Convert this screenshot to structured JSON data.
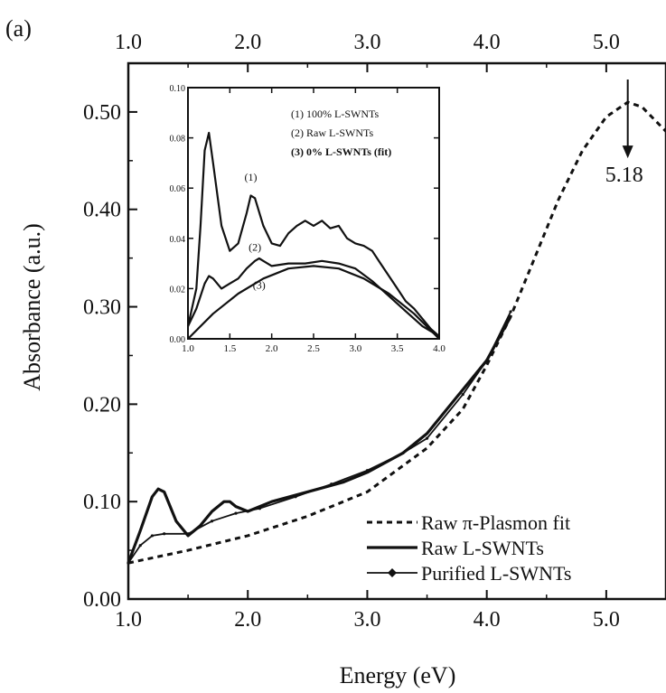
{
  "panel_label": "(a)",
  "chart_data": [
    {
      "type": "line",
      "xlabel": "Energy (eV)",
      "ylabel": "Absorbance (a.u.)",
      "xlim": [
        1.0,
        5.5
      ],
      "ylim": [
        0.0,
        0.55
      ],
      "x_ticks": [
        1.0,
        2.0,
        3.0,
        4.0,
        5.0
      ],
      "x_tick_labels": [
        "1.0",
        "2.0",
        "3.0",
        "4.0",
        "5.0"
      ],
      "top_x_tick_labels": [
        "1.0",
        "2.0",
        "3.0",
        "4.0",
        "5.0"
      ],
      "y_ticks": [
        0.0,
        0.1,
        0.2,
        0.3,
        0.4,
        0.5
      ],
      "y_tick_labels": [
        "0.00",
        "0.10",
        "0.20",
        "0.30",
        "0.40",
        "0.50"
      ],
      "grid": false,
      "legend_position": "bottom-right",
      "annotation": {
        "text": "5.18",
        "x": 5.18,
        "y": 0.51
      },
      "series": [
        {
          "name": "Raw π-Plasmon fit",
          "style": "dashed",
          "x": [
            1.0,
            1.5,
            2.0,
            2.5,
            3.0,
            3.5,
            3.8,
            4.0,
            4.2,
            4.4,
            4.6,
            4.8,
            5.0,
            5.18,
            5.3,
            5.5
          ],
          "y": [
            0.037,
            0.05,
            0.065,
            0.085,
            0.11,
            0.155,
            0.195,
            0.24,
            0.29,
            0.35,
            0.41,
            0.46,
            0.495,
            0.51,
            0.505,
            0.48
          ]
        },
        {
          "name": "Raw L-SWNTs",
          "style": "solid-thick",
          "x": [
            1.0,
            1.1,
            1.2,
            1.25,
            1.3,
            1.4,
            1.5,
            1.6,
            1.7,
            1.8,
            1.85,
            1.9,
            2.0,
            2.2,
            2.5,
            2.8,
            3.0,
            3.3,
            3.5,
            3.8,
            4.0,
            4.2
          ],
          "y": [
            0.037,
            0.07,
            0.105,
            0.113,
            0.11,
            0.08,
            0.065,
            0.075,
            0.09,
            0.1,
            0.1,
            0.095,
            0.09,
            0.1,
            0.11,
            0.12,
            0.13,
            0.15,
            0.17,
            0.215,
            0.245,
            0.29
          ]
        },
        {
          "name": "Purified L-SWNTs",
          "style": "solid-marker",
          "x": [
            1.0,
            1.1,
            1.2,
            1.3,
            1.5,
            1.7,
            1.9,
            2.1,
            2.4,
            2.7,
            3.0,
            3.3,
            3.5,
            3.8,
            4.0,
            4.2
          ],
          "y": [
            0.037,
            0.055,
            0.065,
            0.067,
            0.067,
            0.08,
            0.088,
            0.093,
            0.105,
            0.118,
            0.132,
            0.15,
            0.165,
            0.21,
            0.245,
            0.295
          ]
        }
      ]
    },
    {
      "type": "line",
      "xlim": [
        1.0,
        4.0
      ],
      "ylim": [
        0.0,
        0.1
      ],
      "x_ticks": [
        1.0,
        1.5,
        2.0,
        2.5,
        3.0,
        3.5,
        4.0
      ],
      "x_tick_labels": [
        "1.0",
        "1.5",
        "2.0",
        "2.5",
        "3.0",
        "3.5",
        "4.0"
      ],
      "y_ticks": [
        0.0,
        0.02,
        0.04,
        0.06,
        0.08,
        0.1
      ],
      "y_tick_labels": [
        "0.00",
        "0.02",
        "0.04",
        "0.06",
        "0.08",
        "0.10"
      ],
      "legend_position": "top-right",
      "series": [
        {
          "name": "(1) 100% L-SWNTs",
          "label": "(1)",
          "label_at": [
            1.75,
            0.063
          ],
          "x": [
            1.0,
            1.1,
            1.15,
            1.2,
            1.25,
            1.3,
            1.4,
            1.5,
            1.6,
            1.7,
            1.75,
            1.8,
            1.9,
            2.0,
            2.1,
            2.2,
            2.3,
            2.4,
            2.5,
            2.6,
            2.7,
            2.8,
            2.9,
            3.0,
            3.1,
            3.2,
            3.3,
            3.4,
            3.5,
            3.6,
            3.7,
            3.8,
            3.9,
            4.0
          ],
          "y": [
            0.005,
            0.02,
            0.045,
            0.075,
            0.082,
            0.07,
            0.045,
            0.035,
            0.038,
            0.05,
            0.057,
            0.056,
            0.045,
            0.038,
            0.037,
            0.042,
            0.045,
            0.047,
            0.045,
            0.047,
            0.044,
            0.045,
            0.04,
            0.038,
            0.037,
            0.035,
            0.03,
            0.025,
            0.02,
            0.015,
            0.012,
            0.008,
            0.004,
            0.001
          ]
        },
        {
          "name": "(2) Raw L-SWNTs",
          "label": "(2)",
          "label_at": [
            1.8,
            0.035
          ],
          "x": [
            1.0,
            1.1,
            1.2,
            1.25,
            1.3,
            1.4,
            1.5,
            1.6,
            1.7,
            1.8,
            1.85,
            1.9,
            2.0,
            2.2,
            2.4,
            2.6,
            2.8,
            3.0,
            3.2,
            3.4,
            3.6,
            3.8,
            4.0
          ],
          "y": [
            0.005,
            0.012,
            0.022,
            0.025,
            0.024,
            0.02,
            0.022,
            0.024,
            0.028,
            0.031,
            0.032,
            0.031,
            0.029,
            0.03,
            0.03,
            0.031,
            0.03,
            0.028,
            0.023,
            0.017,
            0.011,
            0.005,
            0.001
          ]
        },
        {
          "name": "(3) 0% L-SWNTs (fit)",
          "label": "(3)",
          "label_at": [
            1.85,
            0.02
          ],
          "x": [
            1.0,
            1.3,
            1.6,
            1.9,
            2.2,
            2.5,
            2.8,
            3.1,
            3.4,
            3.7,
            4.0
          ],
          "y": [
            0.0,
            0.01,
            0.018,
            0.024,
            0.028,
            0.029,
            0.028,
            0.024,
            0.018,
            0.01,
            0.0
          ]
        }
      ]
    }
  ]
}
